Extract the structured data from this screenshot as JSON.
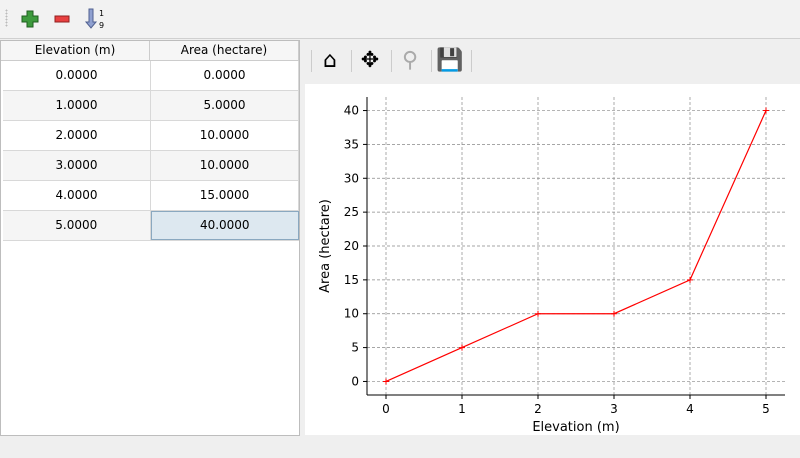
{
  "toolbar": {
    "items": [
      {
        "icon": "add-icon"
      },
      {
        "icon": "remove-icon"
      },
      {
        "icon": "sort-ascending-icon",
        "label_top": "1",
        "label_bottom": "9"
      }
    ]
  },
  "table": {
    "columns": [
      "Elevation (m)",
      "Area (hectare)"
    ],
    "rows": [
      [
        "0.0000",
        "0.0000"
      ],
      [
        "1.0000",
        "5.0000"
      ],
      [
        "2.0000",
        "10.0000"
      ],
      [
        "3.0000",
        "10.0000"
      ],
      [
        "4.0000",
        "15.0000"
      ],
      [
        "5.0000",
        "40.0000"
      ]
    ],
    "selected_cell": [
      5,
      1
    ]
  },
  "chart_toolbar": {
    "items": [
      "home-icon",
      "pan-icon",
      "zoom-icon",
      "save-icon"
    ]
  },
  "chart_data": {
    "type": "line",
    "x": [
      0,
      1,
      2,
      3,
      4,
      5
    ],
    "values": [
      0,
      5,
      10,
      10,
      15,
      40
    ],
    "xlabel": "Elevation (m)",
    "ylabel": "Area (hectare)",
    "xlim": [
      -0.25,
      5.25
    ],
    "ylim": [
      -2,
      42
    ],
    "xticks": [
      0,
      1,
      2,
      3,
      4,
      5
    ],
    "yticks": [
      0,
      5,
      10,
      15,
      20,
      25,
      30,
      35,
      40
    ],
    "grid": true,
    "color": "#ff0000",
    "marker": "+"
  }
}
